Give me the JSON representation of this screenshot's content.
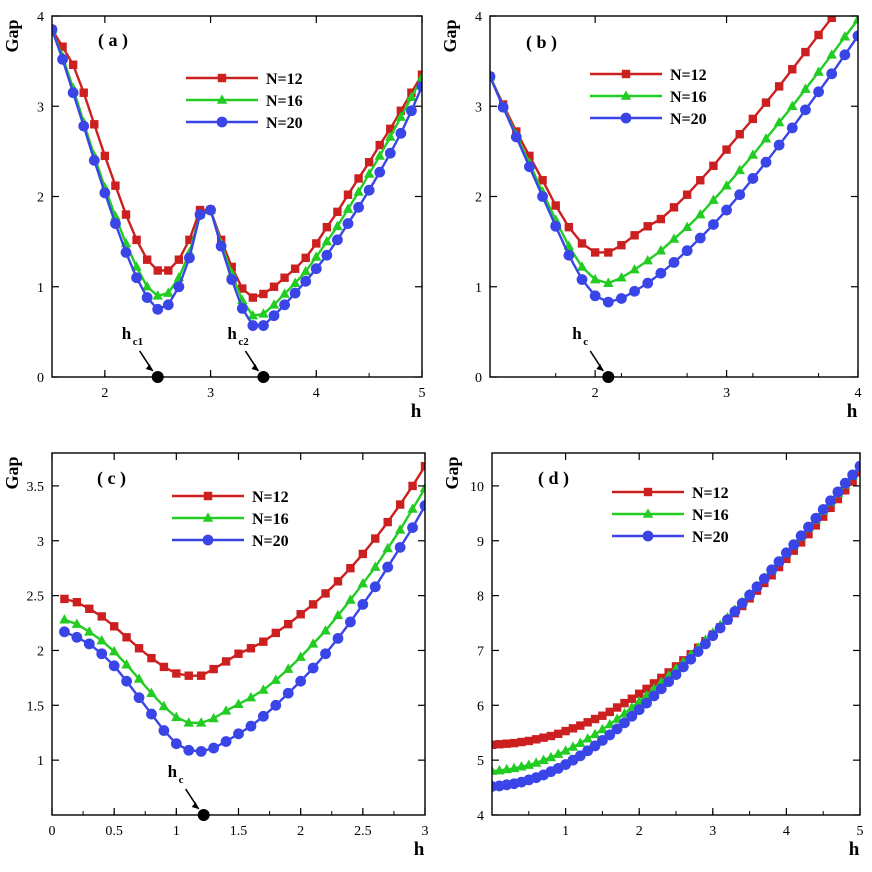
{
  "chart_data": [
    {
      "type": "line",
      "panel_label": "( a )",
      "xlabel": "h",
      "ylabel": "Gap",
      "xlim": [
        1.5,
        5
      ],
      "ylim": [
        0,
        4
      ],
      "xticks": [
        2,
        3,
        4,
        5
      ],
      "yticks": [
        0,
        1,
        2,
        3,
        4
      ],
      "grid": false,
      "legend_position": "upper-right",
      "annotations": [
        {
          "label": "h",
          "subscript": "c1",
          "x": 2.5
        },
        {
          "label": "h",
          "subscript": "c2",
          "x": 3.5
        }
      ],
      "series": [
        {
          "name": "N=12",
          "color": "#cc1f1f",
          "marker": "square",
          "x": [
            1.5,
            1.6,
            1.7,
            1.8,
            1.9,
            2.0,
            2.1,
            2.2,
            2.3,
            2.4,
            2.5,
            2.6,
            2.7,
            2.8,
            2.9,
            3.0,
            3.1,
            3.2,
            3.3,
            3.4,
            3.5,
            3.6,
            3.7,
            3.8,
            3.9,
            4.0,
            4.1,
            4.2,
            4.3,
            4.4,
            4.5,
            4.6,
            4.7,
            4.8,
            4.9,
            5.0
          ],
          "y": [
            3.85,
            3.66,
            3.46,
            3.15,
            2.8,
            2.45,
            2.12,
            1.8,
            1.52,
            1.3,
            1.18,
            1.18,
            1.3,
            1.52,
            1.85,
            1.85,
            1.52,
            1.22,
            0.98,
            0.88,
            0.92,
            1.0,
            1.1,
            1.2,
            1.32,
            1.48,
            1.66,
            1.83,
            2.02,
            2.2,
            2.38,
            2.57,
            2.75,
            2.95,
            3.15,
            3.35
          ]
        },
        {
          "name": "N=16",
          "color": "#22cc22",
          "marker": "triangle",
          "x": [
            1.5,
            1.6,
            1.7,
            1.8,
            1.9,
            2.0,
            2.1,
            2.2,
            2.3,
            2.4,
            2.5,
            2.6,
            2.7,
            2.8,
            2.9,
            3.0,
            3.1,
            3.2,
            3.3,
            3.4,
            3.5,
            3.6,
            3.7,
            3.8,
            3.9,
            4.0,
            4.1,
            4.2,
            4.3,
            4.4,
            4.5,
            4.6,
            4.7,
            4.8,
            4.9,
            5.0
          ],
          "y": [
            3.85,
            3.55,
            3.2,
            2.82,
            2.45,
            2.1,
            1.78,
            1.48,
            1.22,
            1.0,
            0.9,
            0.93,
            1.1,
            1.38,
            1.8,
            1.85,
            1.48,
            1.15,
            0.85,
            0.68,
            0.7,
            0.8,
            0.92,
            1.04,
            1.17,
            1.33,
            1.5,
            1.67,
            1.86,
            2.05,
            2.25,
            2.45,
            2.66,
            2.88,
            3.1,
            3.32
          ]
        },
        {
          "name": "N=20",
          "color": "#3a45e8",
          "marker": "circle",
          "x": [
            1.5,
            1.6,
            1.7,
            1.8,
            1.9,
            2.0,
            2.1,
            2.2,
            2.3,
            2.4,
            2.5,
            2.6,
            2.7,
            2.8,
            2.9,
            3.0,
            3.1,
            3.2,
            3.3,
            3.4,
            3.5,
            3.6,
            3.7,
            3.8,
            3.9,
            4.0,
            4.1,
            4.2,
            4.3,
            4.4,
            4.5,
            4.6,
            4.7,
            4.8,
            4.9,
            5.0
          ],
          "y": [
            3.85,
            3.52,
            3.15,
            2.78,
            2.4,
            2.04,
            1.7,
            1.38,
            1.1,
            0.88,
            0.75,
            0.8,
            1.0,
            1.32,
            1.8,
            1.85,
            1.45,
            1.08,
            0.76,
            0.57,
            0.57,
            0.68,
            0.8,
            0.93,
            1.06,
            1.2,
            1.35,
            1.52,
            1.7,
            1.88,
            2.07,
            2.27,
            2.48,
            2.7,
            2.95,
            3.22
          ]
        }
      ]
    },
    {
      "type": "line",
      "panel_label": "( b )",
      "xlabel": "h",
      "ylabel": "Gap",
      "xlim": [
        1.2,
        4
      ],
      "ylim": [
        0,
        4
      ],
      "xticks": [
        2,
        3,
        4
      ],
      "yticks": [
        0,
        1,
        2,
        3,
        4
      ],
      "grid": false,
      "legend_position": "upper-right",
      "annotations": [
        {
          "label": "h",
          "subscript": "c",
          "x": 2.1
        }
      ],
      "series": [
        {
          "name": "N=12",
          "color": "#cc1f1f",
          "marker": "square",
          "x": [
            1.2,
            1.3,
            1.4,
            1.5,
            1.6,
            1.7,
            1.8,
            1.9,
            2.0,
            2.1,
            2.2,
            2.3,
            2.4,
            2.5,
            2.6,
            2.7,
            2.8,
            2.9,
            3.0,
            3.1,
            3.2,
            3.3,
            3.4,
            3.5,
            3.6,
            3.7,
            3.8,
            3.9,
            4.0
          ],
          "y": [
            3.33,
            3.02,
            2.72,
            2.45,
            2.18,
            1.9,
            1.66,
            1.48,
            1.38,
            1.38,
            1.46,
            1.57,
            1.67,
            1.75,
            1.88,
            2.02,
            2.18,
            2.34,
            2.52,
            2.69,
            2.86,
            3.04,
            3.22,
            3.41,
            3.6,
            3.79,
            3.98,
            4.17,
            4.36
          ]
        },
        {
          "name": "N=16",
          "color": "#22cc22",
          "marker": "triangle",
          "x": [
            1.2,
            1.3,
            1.4,
            1.5,
            1.6,
            1.7,
            1.8,
            1.9,
            2.0,
            2.1,
            2.2,
            2.3,
            2.4,
            2.5,
            2.6,
            2.7,
            2.8,
            2.9,
            3.0,
            3.1,
            3.2,
            3.3,
            3.4,
            3.5,
            3.6,
            3.7,
            3.8,
            3.9,
            4.0
          ],
          "y": [
            3.33,
            3.0,
            2.68,
            2.37,
            2.05,
            1.74,
            1.45,
            1.22,
            1.08,
            1.04,
            1.1,
            1.19,
            1.29,
            1.4,
            1.53,
            1.66,
            1.8,
            1.96,
            2.12,
            2.29,
            2.46,
            2.64,
            2.82,
            3.0,
            3.19,
            3.38,
            3.57,
            3.77,
            3.96
          ]
        },
        {
          "name": "N=20",
          "color": "#3a45e8",
          "marker": "circle",
          "x": [
            1.2,
            1.3,
            1.4,
            1.5,
            1.6,
            1.7,
            1.8,
            1.9,
            2.0,
            2.1,
            2.2,
            2.3,
            2.4,
            2.5,
            2.6,
            2.7,
            2.8,
            2.9,
            3.0,
            3.1,
            3.2,
            3.3,
            3.4,
            3.5,
            3.6,
            3.7,
            3.8,
            3.9,
            4.0
          ],
          "y": [
            3.33,
            2.99,
            2.66,
            2.33,
            2.0,
            1.67,
            1.35,
            1.08,
            0.9,
            0.83,
            0.87,
            0.95,
            1.04,
            1.15,
            1.27,
            1.4,
            1.54,
            1.69,
            1.85,
            2.02,
            2.2,
            2.38,
            2.57,
            2.76,
            2.96,
            3.16,
            3.36,
            3.57,
            3.78
          ]
        }
      ]
    },
    {
      "type": "line",
      "panel_label": "( c )",
      "xlabel": "h",
      "ylabel": "Gap",
      "xlim": [
        0,
        3
      ],
      "ylim": [
        0.5,
        3.8
      ],
      "xticks": [
        0,
        0.5,
        1,
        1.5,
        2,
        2.5,
        3
      ],
      "yticks": [
        1,
        1.5,
        2,
        2.5,
        3,
        3.5
      ],
      "grid": false,
      "legend_position": "upper-right",
      "annotations": [
        {
          "label": "h",
          "subscript": "c",
          "x": 1.22
        }
      ],
      "series": [
        {
          "name": "N=12",
          "color": "#cc1f1f",
          "marker": "square",
          "x": [
            0.1,
            0.2,
            0.3,
            0.4,
            0.5,
            0.6,
            0.7,
            0.8,
            0.9,
            1.0,
            1.1,
            1.2,
            1.3,
            1.4,
            1.5,
            1.6,
            1.7,
            1.8,
            1.9,
            2.0,
            2.1,
            2.2,
            2.3,
            2.4,
            2.5,
            2.6,
            2.7,
            2.8,
            2.9,
            3.0
          ],
          "y": [
            2.47,
            2.44,
            2.38,
            2.31,
            2.22,
            2.12,
            2.02,
            1.93,
            1.85,
            1.79,
            1.77,
            1.77,
            1.83,
            1.9,
            1.97,
            2.02,
            2.08,
            2.16,
            2.24,
            2.33,
            2.42,
            2.52,
            2.63,
            2.75,
            2.88,
            3.02,
            3.17,
            3.33,
            3.5,
            3.68
          ]
        },
        {
          "name": "N=16",
          "color": "#22cc22",
          "marker": "triangle",
          "x": [
            0.1,
            0.2,
            0.3,
            0.4,
            0.5,
            0.6,
            0.7,
            0.8,
            0.9,
            1.0,
            1.1,
            1.2,
            1.3,
            1.4,
            1.5,
            1.6,
            1.7,
            1.8,
            1.9,
            2.0,
            2.1,
            2.2,
            2.3,
            2.4,
            2.5,
            2.6,
            2.7,
            2.8,
            2.9,
            3.0
          ],
          "y": [
            2.28,
            2.24,
            2.17,
            2.09,
            1.99,
            1.87,
            1.74,
            1.61,
            1.49,
            1.39,
            1.34,
            1.34,
            1.38,
            1.45,
            1.51,
            1.57,
            1.64,
            1.73,
            1.83,
            1.94,
            2.06,
            2.18,
            2.32,
            2.46,
            2.61,
            2.76,
            2.93,
            3.1,
            3.29,
            3.48
          ]
        },
        {
          "name": "N=20",
          "color": "#3a45e8",
          "marker": "circle",
          "x": [
            0.1,
            0.2,
            0.3,
            0.4,
            0.5,
            0.6,
            0.7,
            0.8,
            0.9,
            1.0,
            1.1,
            1.2,
            1.3,
            1.4,
            1.5,
            1.6,
            1.7,
            1.8,
            1.9,
            2.0,
            2.1,
            2.2,
            2.3,
            2.4,
            2.5,
            2.6,
            2.7,
            2.8,
            2.9,
            3.0
          ],
          "y": [
            2.17,
            2.12,
            2.06,
            1.97,
            1.86,
            1.72,
            1.57,
            1.42,
            1.27,
            1.15,
            1.09,
            1.08,
            1.11,
            1.17,
            1.24,
            1.31,
            1.4,
            1.5,
            1.61,
            1.72,
            1.84,
            1.97,
            2.11,
            2.26,
            2.42,
            2.58,
            2.76,
            2.94,
            3.12,
            3.32
          ]
        }
      ]
    },
    {
      "type": "line",
      "panel_label": "( d )",
      "xlabel": "h",
      "ylabel": "Gap",
      "xlim": [
        0,
        5
      ],
      "ylim": [
        4,
        10.6
      ],
      "xticks": [
        1,
        2,
        3,
        4,
        5
      ],
      "yticks": [
        4,
        5,
        6,
        7,
        8,
        9,
        10
      ],
      "grid": false,
      "legend_position": "upper-left",
      "annotations": [],
      "series": [
        {
          "name": "N=12",
          "color": "#cc1f1f",
          "marker": "square",
          "x": [
            0.0,
            0.1,
            0.2,
            0.3,
            0.4,
            0.5,
            0.6,
            0.7,
            0.8,
            0.9,
            1.0,
            1.1,
            1.2,
            1.3,
            1.4,
            1.5,
            1.6,
            1.7,
            1.8,
            1.9,
            2.0,
            2.1,
            2.2,
            2.3,
            2.4,
            2.5,
            2.6,
            2.7,
            2.8,
            2.9,
            3.0,
            3.1,
            3.2,
            3.3,
            3.4,
            3.5,
            3.6,
            3.7,
            3.8,
            3.9,
            4.0,
            4.1,
            4.2,
            4.3,
            4.4,
            4.5,
            4.6,
            4.7,
            4.8,
            4.9,
            5.0
          ],
          "y": [
            5.28,
            5.29,
            5.3,
            5.31,
            5.33,
            5.35,
            5.38,
            5.41,
            5.44,
            5.48,
            5.53,
            5.58,
            5.63,
            5.69,
            5.75,
            5.81,
            5.88,
            5.96,
            6.04,
            6.12,
            6.21,
            6.3,
            6.4,
            6.5,
            6.6,
            6.71,
            6.82,
            6.93,
            7.05,
            7.17,
            7.29,
            7.42,
            7.55,
            7.68,
            7.81,
            7.95,
            8.09,
            8.23,
            8.37,
            8.52,
            8.67,
            8.82,
            8.97,
            9.12,
            9.28,
            9.44,
            9.6,
            9.76,
            9.92,
            10.08,
            10.25
          ]
        },
        {
          "name": "N=16",
          "color": "#22cc22",
          "marker": "triangle",
          "x": [
            0.0,
            0.1,
            0.2,
            0.3,
            0.4,
            0.5,
            0.6,
            0.7,
            0.8,
            0.9,
            1.0,
            1.1,
            1.2,
            1.3,
            1.4,
            1.5,
            1.6,
            1.7,
            1.8,
            1.9,
            2.0,
            2.1,
            2.2,
            2.3,
            2.4,
            2.5,
            2.6,
            2.7,
            2.8,
            2.9,
            3.0,
            3.1,
            3.2,
            3.3,
            3.4,
            3.5,
            3.6,
            3.7,
            3.8,
            3.9,
            4.0,
            4.1,
            4.2,
            4.3,
            4.4,
            4.5,
            4.6,
            4.7,
            4.8,
            4.9,
            5.0
          ],
          "y": [
            4.8,
            4.81,
            4.83,
            4.85,
            4.88,
            4.91,
            4.95,
            5.0,
            5.05,
            5.11,
            5.17,
            5.24,
            5.31,
            5.39,
            5.47,
            5.56,
            5.65,
            5.75,
            5.85,
            5.96,
            6.07,
            6.18,
            6.3,
            6.42,
            6.54,
            6.67,
            6.79,
            6.92,
            7.05,
            7.19,
            7.32,
            7.46,
            7.6,
            7.74,
            7.88,
            8.03,
            8.17,
            8.32,
            8.47,
            8.62,
            8.77,
            8.92,
            9.07,
            9.23,
            9.38,
            9.54,
            9.7,
            9.86,
            10.02,
            10.18,
            10.34
          ]
        },
        {
          "name": "N=20",
          "color": "#3a45e8",
          "marker": "circle",
          "x": [
            0.0,
            0.1,
            0.2,
            0.3,
            0.4,
            0.5,
            0.6,
            0.7,
            0.8,
            0.9,
            1.0,
            1.1,
            1.2,
            1.3,
            1.4,
            1.5,
            1.6,
            1.7,
            1.8,
            1.9,
            2.0,
            2.1,
            2.2,
            2.3,
            2.4,
            2.5,
            2.6,
            2.7,
            2.8,
            2.9,
            3.0,
            3.1,
            3.2,
            3.3,
            3.4,
            3.5,
            3.6,
            3.7,
            3.8,
            3.9,
            4.0,
            4.1,
            4.2,
            4.3,
            4.4,
            4.5,
            4.6,
            4.7,
            4.8,
            4.9,
            5.0
          ],
          "y": [
            4.52,
            4.53,
            4.55,
            4.57,
            4.6,
            4.64,
            4.68,
            4.73,
            4.79,
            4.85,
            4.92,
            5.0,
            5.08,
            5.17,
            5.26,
            5.36,
            5.46,
            5.57,
            5.68,
            5.8,
            5.92,
            6.04,
            6.17,
            6.3,
            6.43,
            6.56,
            6.7,
            6.84,
            6.98,
            7.12,
            7.27,
            7.41,
            7.56,
            7.71,
            7.86,
            8.01,
            8.16,
            8.31,
            8.47,
            8.62,
            8.78,
            8.93,
            9.09,
            9.25,
            9.41,
            9.57,
            9.73,
            9.89,
            10.05,
            10.2,
            10.36
          ]
        }
      ]
    }
  ]
}
